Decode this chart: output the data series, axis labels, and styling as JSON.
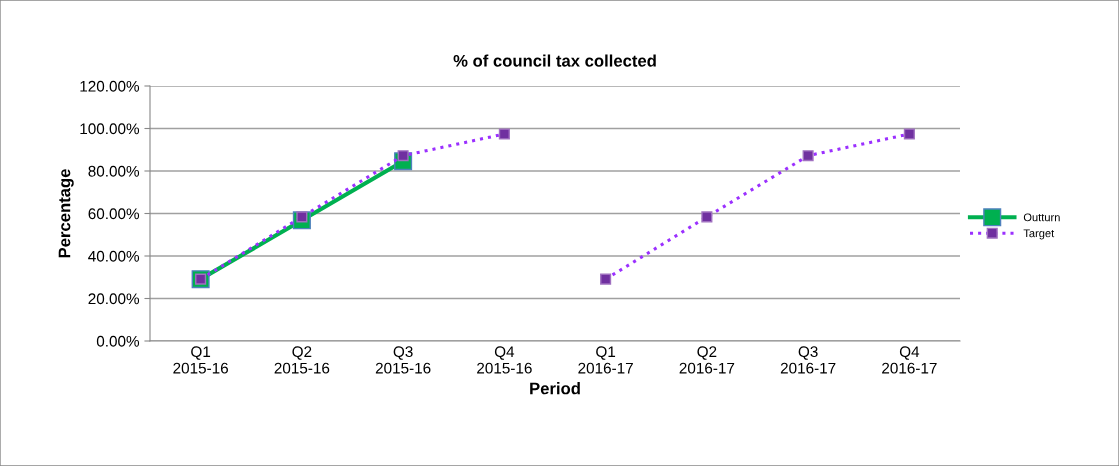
{
  "chart_data": {
    "type": "line",
    "title": "% of council tax collected",
    "xlabel": "Period",
    "ylabel": "Percentage",
    "categories": [
      "Q1\n2015-16",
      "Q2\n2015-16",
      "Q3\n2015-16",
      "Q4\n2015-16",
      "Q1\n2016-17",
      "Q2\n2016-17",
      "Q3\n2016-17",
      "Q4\n2016-17"
    ],
    "series": [
      {
        "name": "Outturn",
        "color": "#00b050",
        "line_style": "solid",
        "marker": "square",
        "values": [
          29.1,
          56.8,
          84.6,
          null,
          null,
          null,
          null,
          null
        ]
      },
      {
        "name": "Target",
        "color": "#9b30ff",
        "line_style": "dotted",
        "marker": "square",
        "values": [
          29.1,
          58.4,
          87.2,
          97.4,
          null,
          null,
          null,
          null
        ]
      },
      {
        "color": "#9b30ff",
        "line_style": "dotted",
        "marker": "square",
        "values": [
          null,
          null,
          null,
          null,
          29.1,
          58.4,
          87.2,
          97.4
        ]
      }
    ],
    "ylim": [
      0,
      120
    ],
    "yticks": [
      {
        "value": 0,
        "label": "0.00%"
      },
      {
        "value": 20,
        "label": "20.00%"
      },
      {
        "value": 40,
        "label": "40.00%"
      },
      {
        "value": 60,
        "label": "60.00%"
      },
      {
        "value": 80,
        "label": "80.00%"
      },
      {
        "value": 100,
        "label": "100.00%"
      },
      {
        "value": 120,
        "label": "120.00%"
      }
    ],
    "grid": "y",
    "legend": "right"
  }
}
